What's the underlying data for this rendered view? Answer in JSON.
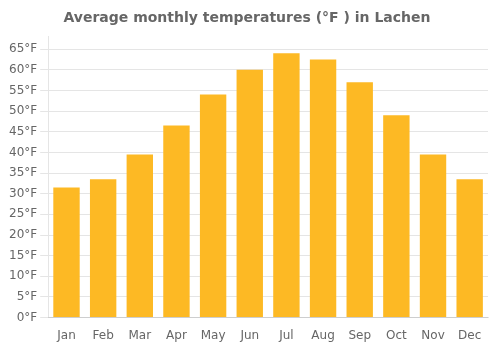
{
  "chart_data": {
    "type": "bar",
    "title": "Average monthly temperatures (°F ) in Lachen",
    "categories": [
      "Jan",
      "Feb",
      "Mar",
      "Apr",
      "May",
      "Jun",
      "Jul",
      "Aug",
      "Sep",
      "Oct",
      "Nov",
      "Dec"
    ],
    "values": [
      31.5,
      33.5,
      39.5,
      46.5,
      54,
      60,
      64,
      62.5,
      57,
      49,
      39.5,
      33.5
    ],
    "color": "#FDB924",
    "ylim": [
      0,
      68
    ],
    "yticks": [
      {
        "value": 0,
        "label": "0°F"
      },
      {
        "value": 5,
        "label": "5°F"
      },
      {
        "value": 10,
        "label": "10°F"
      },
      {
        "value": 15,
        "label": "15°F"
      },
      {
        "value": 20,
        "label": "20°F"
      },
      {
        "value": 25,
        "label": "25°F"
      },
      {
        "value": 30,
        "label": "30°F"
      },
      {
        "value": 35,
        "label": "35°F"
      },
      {
        "value": 40,
        "label": "40°F"
      },
      {
        "value": 45,
        "label": "45°F"
      },
      {
        "value": 50,
        "label": "50°F"
      },
      {
        "value": 55,
        "label": "55°F"
      },
      {
        "value": 60,
        "label": "60°F"
      },
      {
        "value": 65,
        "label": "65°F"
      }
    ],
    "grid": true
  }
}
